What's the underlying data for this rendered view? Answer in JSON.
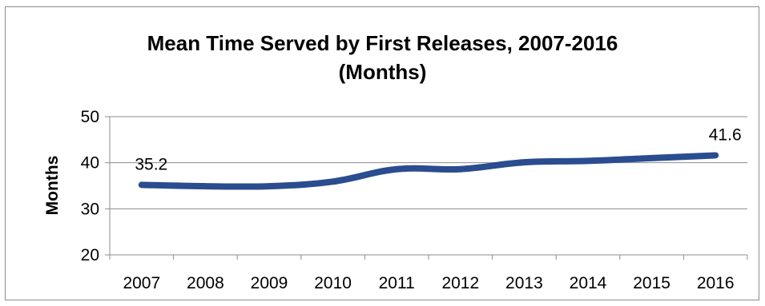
{
  "chart_data": {
    "type": "line",
    "title_line1": "Mean Time Served by First Releases, 2007-2016",
    "title_line2": "(Months)",
    "xlabel": "",
    "ylabel": "Months",
    "categories": [
      "2007",
      "2008",
      "2009",
      "2010",
      "2011",
      "2012",
      "2013",
      "2014",
      "2015",
      "2016"
    ],
    "series": [
      {
        "values": [
          35.2,
          34.9,
          34.9,
          35.9,
          38.6,
          38.6,
          40.1,
          40.4,
          41.0,
          41.6
        ],
        "color": "#2a4d8f"
      }
    ],
    "data_labels": [
      {
        "index": 0,
        "text": "35.2"
      },
      {
        "index": 9,
        "text": "41.6"
      }
    ],
    "ylim": [
      20,
      50
    ],
    "yticks": [
      20,
      30,
      40,
      50
    ],
    "grid": true,
    "legend": "none"
  }
}
